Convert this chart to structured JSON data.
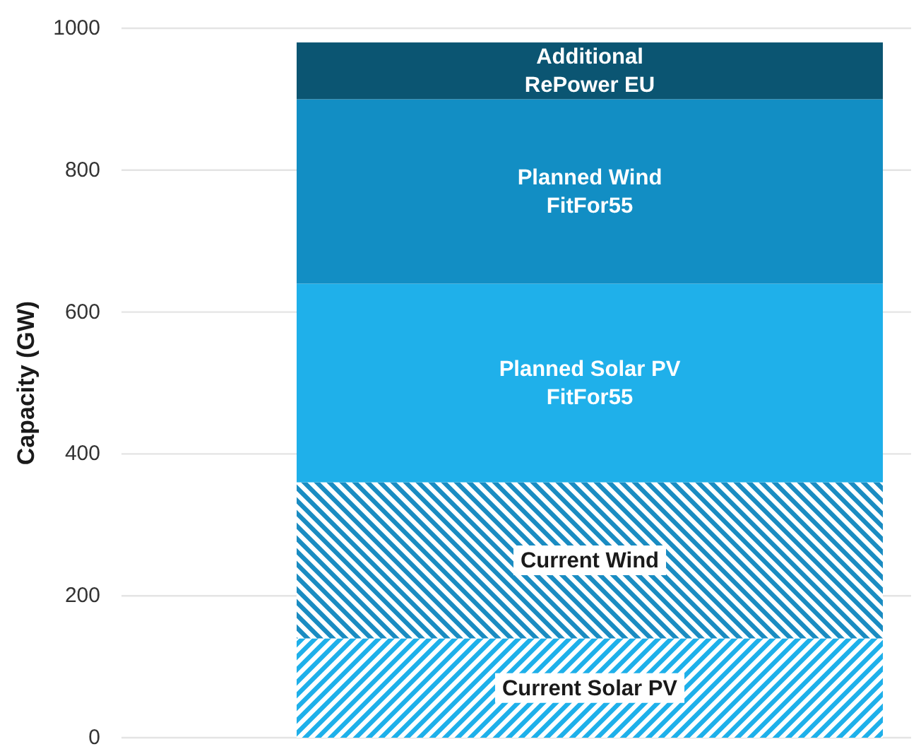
{
  "chart_data": {
    "type": "bar",
    "stacked": true,
    "categories": [
      null
    ],
    "series": [
      {
        "name": "Current Solar PV",
        "color": "#1eb0ea",
        "values": [
          140
        ]
      },
      {
        "name": "Current Wind",
        "color": "#1a8cc2",
        "values": [
          220
        ]
      },
      {
        "name": "Planned Solar PV\nFitFor55",
        "color": "#1fb0ea",
        "values": [
          280
        ]
      },
      {
        "name": "Planned Wind\nFitFor55",
        "color": "#128ec4",
        "values": [
          260
        ]
      },
      {
        "name": "Additional\nRePower EU",
        "color": "#0b5572",
        "values": [
          80
        ]
      }
    ],
    "ylabel": "Capacity (GW)",
    "ylim": [
      0,
      1000
    ],
    "yticks": [
      0,
      200,
      400,
      600,
      800,
      1000
    ],
    "grid": "y",
    "tick_labels": "y"
  }
}
